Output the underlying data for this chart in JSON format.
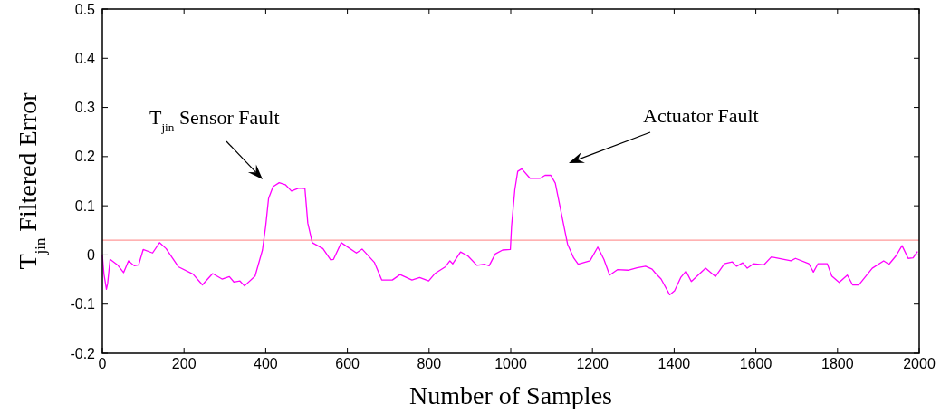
{
  "chart_data": {
    "type": "line",
    "xlabel": "Number of Samples",
    "ylabel": "T$_{jin}$ Filtered Error",
    "xlim": [
      0,
      2000
    ],
    "ylim": [
      -0.2,
      0.5
    ],
    "xticks": [
      0,
      200,
      400,
      600,
      800,
      1000,
      1200,
      1400,
      1600,
      1800,
      2000
    ],
    "yticks": [
      -0.2,
      -0.1,
      0,
      0.1,
      0.2,
      0.3,
      0.4,
      0.5
    ],
    "grid": false,
    "series": [
      {
        "color": "#ff00ff",
        "x": [
          0,
          4,
          10,
          13,
          19,
          38,
          52,
          64,
          78,
          89,
          100,
          123,
          140,
          156,
          186,
          222,
          245,
          270,
          293,
          311,
          322,
          337,
          348,
          374,
          392,
          400,
          407,
          418,
          433,
          448,
          463,
          481,
          496,
          503,
          514,
          540,
          559,
          566,
          585,
          622,
          636,
          666,
          684,
          710,
          729,
          758,
          777,
          799,
          814,
          840,
          851,
          858,
          877,
          895,
          917,
          936,
          947,
          962,
          980,
          999,
          1002,
          1010,
          1017,
          1027,
          1047,
          1072,
          1084,
          1098,
          1109,
          1124,
          1139,
          1154,
          1165,
          1194,
          1213,
          1228,
          1242,
          1261,
          1287,
          1309,
          1330,
          1346,
          1353,
          1368,
          1389,
          1401,
          1416,
          1429,
          1442,
          1477,
          1501,
          1523,
          1542,
          1553,
          1568,
          1579,
          1594,
          1620,
          1638,
          1686,
          1697,
          1730,
          1741,
          1752,
          1775,
          1786,
          1804,
          1824,
          1837,
          1852,
          1885,
          1913,
          1926,
          1943,
          1958,
          1973,
          1985,
          1996
        ],
        "values": [
          0,
          -0.039,
          -0.07,
          -0.058,
          -0.009,
          -0.021,
          -0.036,
          -0.012,
          -0.022,
          -0.02,
          0.011,
          0.004,
          0.025,
          0.013,
          -0.024,
          -0.039,
          -0.061,
          -0.038,
          -0.049,
          -0.044,
          -0.055,
          -0.053,
          -0.063,
          -0.043,
          0.01,
          0.059,
          0.115,
          0.139,
          0.147,
          0.143,
          0.13,
          0.136,
          0.135,
          0.065,
          0.025,
          0.013,
          -0.01,
          -0.009,
          0.025,
          0.004,
          0.012,
          -0.015,
          -0.051,
          -0.051,
          -0.04,
          -0.051,
          -0.046,
          -0.053,
          -0.038,
          -0.024,
          -0.012,
          -0.018,
          0.006,
          -0.002,
          -0.021,
          -0.019,
          -0.022,
          0.002,
          0.01,
          0.011,
          0.059,
          0.133,
          0.17,
          0.175,
          0.156,
          0.156,
          0.162,
          0.162,
          0.146,
          0.084,
          0.022,
          -0.006,
          -0.019,
          -0.012,
          0.016,
          -0.009,
          -0.041,
          -0.03,
          -0.031,
          -0.026,
          -0.023,
          -0.029,
          -0.036,
          -0.049,
          -0.081,
          -0.073,
          -0.046,
          -0.033,
          -0.054,
          -0.027,
          -0.044,
          -0.018,
          -0.014,
          -0.023,
          -0.016,
          -0.027,
          -0.018,
          -0.02,
          -0.004,
          -0.012,
          -0.007,
          -0.018,
          -0.035,
          -0.018,
          -0.018,
          -0.043,
          -0.056,
          -0.041,
          -0.061,
          -0.061,
          -0.027,
          -0.012,
          -0.019,
          -0.002,
          0.019,
          -0.007,
          -0.006,
          0.007
        ]
      }
    ],
    "ref_lines": [
      {
        "axis": "y",
        "value": 0.03,
        "color": "#ff9999"
      }
    ],
    "annotations": [
      "T$_{jin}$ Sensor Fault",
      "Actuator Fault"
    ]
  }
}
